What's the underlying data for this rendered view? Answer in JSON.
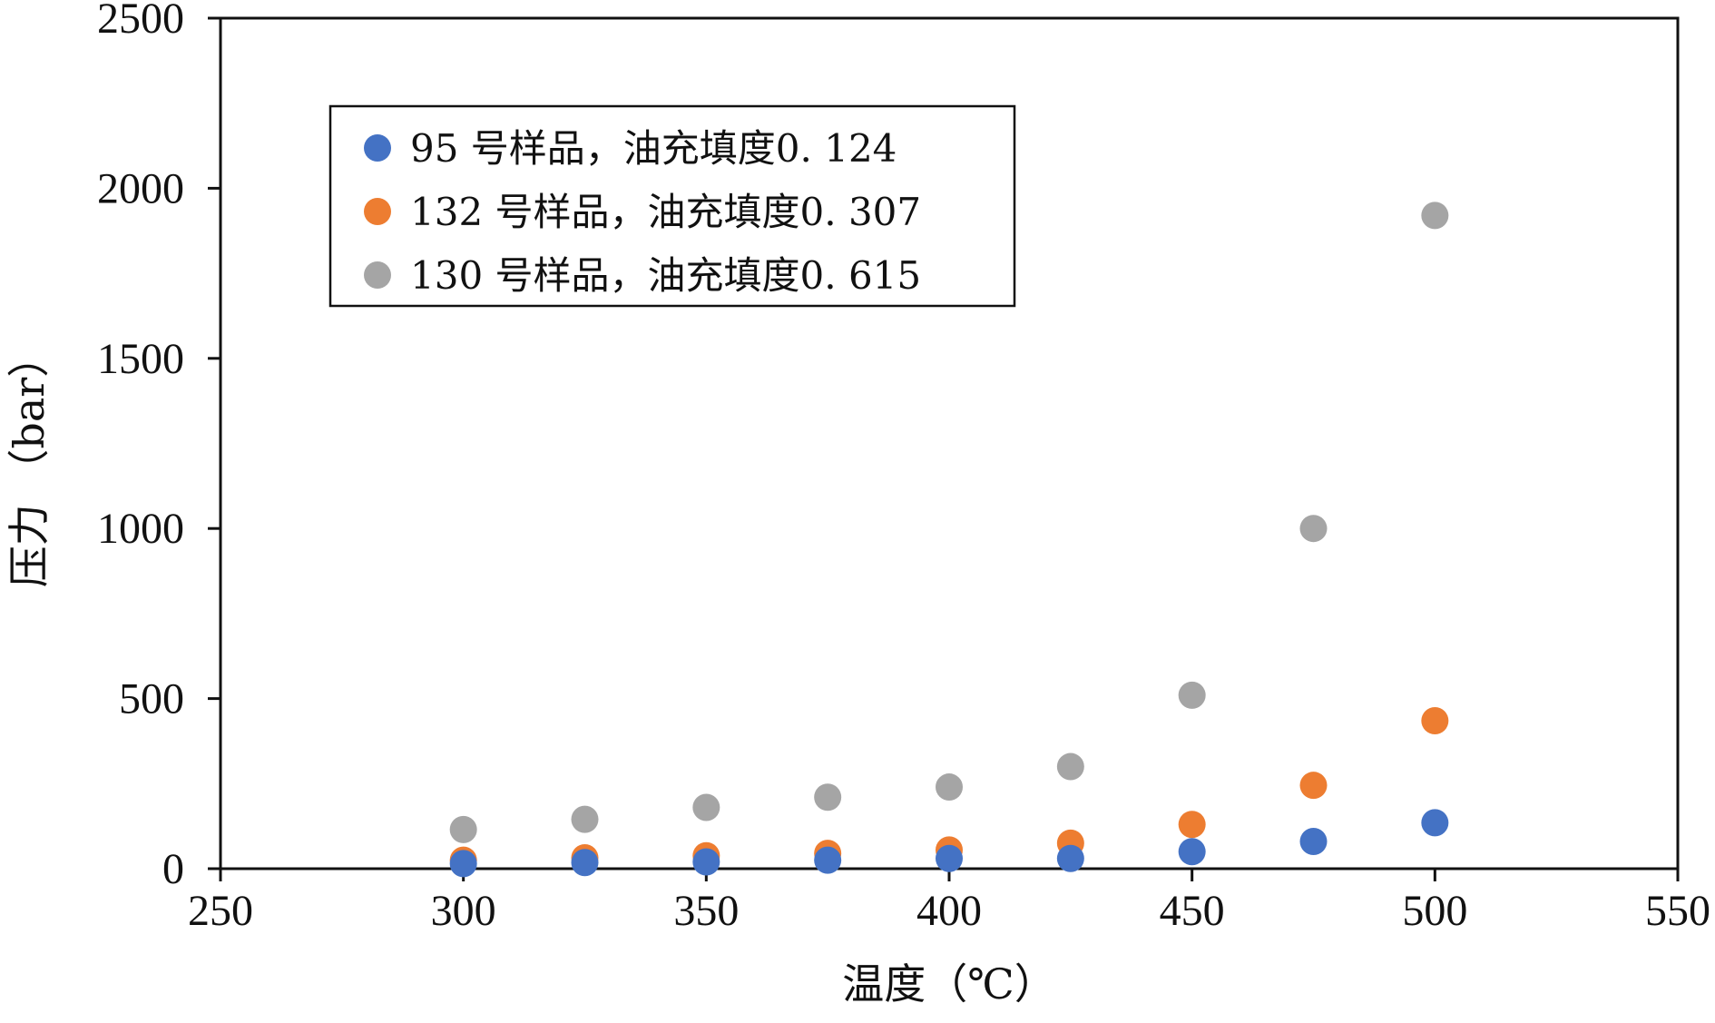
{
  "chart_data": {
    "type": "scatter",
    "xlabel": "温度（℃）",
    "ylabel": "压力 （bar）",
    "xlim": [
      250,
      550
    ],
    "ylim": [
      0,
      2500
    ],
    "xticks": [
      250,
      300,
      350,
      400,
      450,
      500,
      550
    ],
    "yticks": [
      0,
      500,
      1000,
      1500,
      2000,
      2500
    ],
    "grid": false,
    "legend_position": "top-left",
    "series": [
      {
        "name": "95 号样品，油充填度0. 124",
        "color": "#4472C4",
        "x": [
          300,
          325,
          350,
          375,
          400,
          425,
          450,
          475,
          500
        ],
        "y": [
          15,
          18,
          20,
          25,
          30,
          30,
          50,
          80,
          135
        ]
      },
      {
        "name": "132 号样品，油充填度0. 307",
        "color": "#ED7D31",
        "x": [
          300,
          325,
          350,
          375,
          400,
          425,
          450,
          475,
          500
        ],
        "y": [
          25,
          32,
          38,
          45,
          55,
          75,
          130,
          245,
          435
        ]
      },
      {
        "name": "130 号样品，油充填度0. 615",
        "color": "#A5A5A5",
        "x": [
          300,
          325,
          350,
          375,
          400,
          425,
          450,
          475,
          500
        ],
        "y": [
          115,
          145,
          180,
          210,
          240,
          300,
          510,
          1000,
          1920
        ]
      }
    ]
  }
}
